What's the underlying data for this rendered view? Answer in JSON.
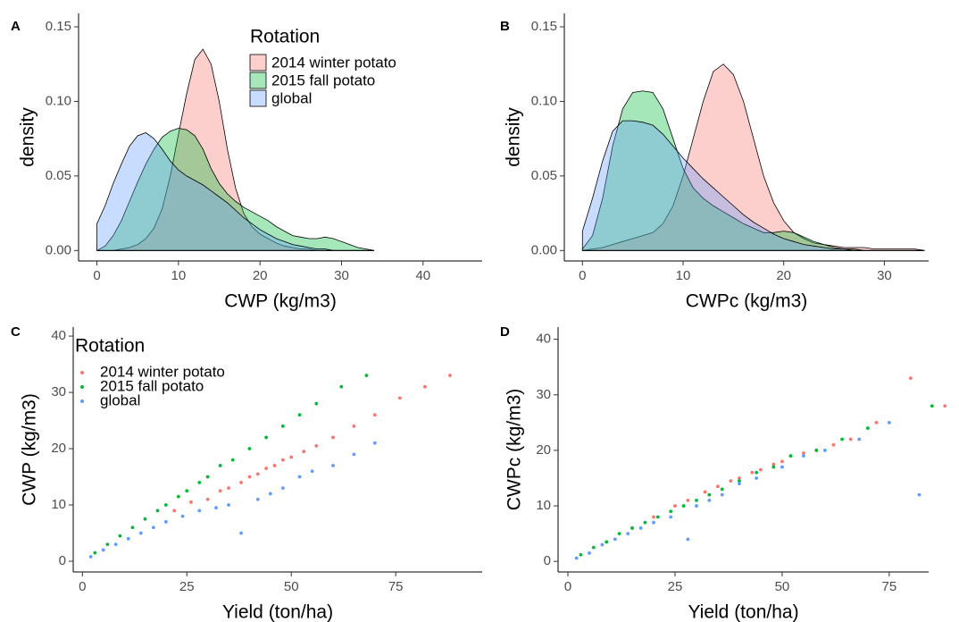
{
  "chart_data": [
    {
      "type": "area",
      "panel": "A",
      "xlabel": "CWP (kg/m3)",
      "ylabel": "density",
      "legend_title": "Rotation",
      "xlim": [
        -2.25,
        47.25
      ],
      "ylim": [
        -0.007,
        0.159
      ],
      "xticks": [
        0,
        10,
        20,
        30,
        40
      ],
      "yticks": [
        {
          "value": 0,
          "label": "0.00"
        },
        {
          "value": 0.05,
          "label": "0.05"
        },
        {
          "value": 0.1,
          "label": "0.10"
        },
        {
          "value": 0.15,
          "label": "0.15"
        }
      ],
      "x": [
        0,
        1,
        2,
        3,
        4,
        5,
        6,
        7,
        8,
        9,
        10,
        11,
        12,
        13,
        14,
        15,
        16,
        17,
        18,
        19,
        20,
        21,
        22,
        23,
        24,
        25,
        26,
        27,
        28,
        29,
        30,
        31,
        32,
        33,
        34
      ],
      "series": [
        {
          "name": "2014 winter potato",
          "color": "#F8766D",
          "values": [
            0,
            0,
            0,
            0.001,
            0.002,
            0.004,
            0.008,
            0.015,
            0.028,
            0.05,
            0.078,
            0.105,
            0.128,
            0.135,
            0.125,
            0.1,
            0.068,
            0.042,
            0.025,
            0.016,
            0.011,
            0.008,
            0.005,
            0.003,
            0.002,
            0.001,
            0.001,
            0,
            0,
            0,
            0,
            0,
            0,
            0,
            0
          ]
        },
        {
          "name": "2015 fall potato",
          "color": "#00BA38",
          "values": [
            0,
            0.003,
            0.01,
            0.02,
            0.033,
            0.046,
            0.058,
            0.068,
            0.076,
            0.08,
            0.082,
            0.081,
            0.077,
            0.068,
            0.055,
            0.045,
            0.038,
            0.033,
            0.029,
            0.026,
            0.023,
            0.02,
            0.016,
            0.013,
            0.01,
            0.009,
            0.008,
            0.008,
            0.009,
            0.008,
            0.006,
            0.004,
            0.002,
            0.001,
            0
          ]
        },
        {
          "name": "global",
          "color": "#619CFF",
          "values": [
            0.018,
            0.03,
            0.045,
            0.058,
            0.07,
            0.077,
            0.079,
            0.075,
            0.068,
            0.06,
            0.054,
            0.05,
            0.047,
            0.044,
            0.04,
            0.036,
            0.032,
            0.027,
            0.022,
            0.018,
            0.014,
            0.011,
            0.008,
            0.006,
            0.004,
            0.003,
            0.002,
            0.001,
            0.001,
            0,
            0,
            0,
            0,
            0,
            0
          ]
        }
      ]
    },
    {
      "type": "area",
      "panel": "B",
      "xlabel": "CWPc (kg/m3)",
      "ylabel": "density",
      "xlim": [
        -1.8,
        34.4
      ],
      "ylim": [
        -0.007,
        0.159
      ],
      "xticks": [
        0,
        10,
        20,
        30
      ],
      "yticks": [
        {
          "value": 0,
          "label": "0.00"
        },
        {
          "value": 0.05,
          "label": "0.05"
        },
        {
          "value": 0.1,
          "label": "0.10"
        },
        {
          "value": 0.15,
          "label": "0.15"
        }
      ],
      "x": [
        0,
        1,
        2,
        3,
        4,
        5,
        6,
        7,
        8,
        9,
        10,
        11,
        12,
        13,
        14,
        15,
        16,
        17,
        18,
        19,
        20,
        21,
        22,
        23,
        24,
        25,
        26,
        27,
        28,
        29,
        30,
        31,
        32,
        33,
        34
      ],
      "series": [
        {
          "color": "#F8766D",
          "values": [
            0,
            0.001,
            0.002,
            0.004,
            0.006,
            0.008,
            0.01,
            0.012,
            0.018,
            0.03,
            0.05,
            0.075,
            0.1,
            0.12,
            0.125,
            0.118,
            0.1,
            0.075,
            0.05,
            0.032,
            0.02,
            0.012,
            0.008,
            0.005,
            0.004,
            0.003,
            0.002,
            0.002,
            0.002,
            0.001,
            0.001,
            0.001,
            0.001,
            0.001,
            0
          ]
        },
        {
          "color": "#00BA38",
          "values": [
            0.001,
            0.01,
            0.035,
            0.07,
            0.095,
            0.106,
            0.107,
            0.106,
            0.095,
            0.075,
            0.055,
            0.042,
            0.035,
            0.03,
            0.026,
            0.022,
            0.018,
            0.015,
            0.012,
            0.012,
            0.013,
            0.012,
            0.009,
            0.006,
            0.004,
            0.002,
            0.001,
            0.001,
            0,
            0,
            0,
            0,
            0,
            0,
            0
          ]
        },
        {
          "color": "#619CFF",
          "values": [
            0.013,
            0.035,
            0.06,
            0.08,
            0.087,
            0.087,
            0.086,
            0.084,
            0.078,
            0.07,
            0.062,
            0.055,
            0.048,
            0.042,
            0.036,
            0.03,
            0.024,
            0.019,
            0.015,
            0.011,
            0.008,
            0.006,
            0.004,
            0.003,
            0.002,
            0.001,
            0.001,
            0,
            0,
            0,
            0,
            0,
            0,
            0,
            0
          ]
        }
      ]
    },
    {
      "type": "scatter",
      "panel": "C",
      "xlabel": "Yield (ton/ha)",
      "ylabel": "CWP (kg/m3)",
      "legend_title": "Rotation",
      "xlim": [
        -2.2,
        95.7
      ],
      "ylim": [
        -1.9,
        41.6
      ],
      "xticks": [
        0,
        25,
        50,
        75
      ],
      "yticks": [
        0,
        10,
        20,
        30,
        40
      ],
      "series": [
        {
          "name": "2014 winter potato",
          "color": "#F8766D",
          "x": [
            22,
            26,
            30,
            33,
            35,
            38,
            40,
            42,
            44,
            46,
            48,
            50,
            53,
            56,
            60,
            65,
            70,
            76,
            82,
            88
          ],
          "values": [
            9,
            10.5,
            11,
            12.5,
            13,
            14,
            15,
            15.5,
            16.5,
            17,
            18,
            18.5,
            19.5,
            20.5,
            22,
            24,
            26,
            29,
            31,
            33
          ]
        },
        {
          "name": "2015 fall potato",
          "color": "#00BA38",
          "x": [
            3,
            6,
            9,
            12,
            15,
            18,
            20,
            23,
            25,
            28,
            30,
            33,
            36,
            40,
            44,
            48,
            52,
            56,
            62,
            68
          ],
          "values": [
            1.5,
            3,
            4.5,
            6,
            7.5,
            9,
            10,
            11.5,
            12.5,
            14,
            15,
            17,
            18,
            20,
            22,
            24,
            26,
            28,
            31,
            33
          ]
        },
        {
          "name": "global",
          "color": "#619CFF",
          "x": [
            2,
            5,
            8,
            11,
            14,
            17,
            20,
            24,
            28,
            32,
            35,
            38,
            42,
            45,
            48,
            52,
            55,
            60,
            65,
            70
          ],
          "values": [
            0.8,
            2,
            3,
            4,
            5,
            6,
            7,
            8,
            9,
            9.5,
            10,
            5,
            11,
            12,
            13,
            15,
            16,
            17,
            19,
            21
          ]
        }
      ]
    },
    {
      "type": "scatter",
      "panel": "D",
      "xlabel": "Yield (ton/ha)",
      "ylabel": "CWPc (kg/m3)",
      "xlim": [
        -2.3,
        84.2
      ],
      "ylim": [
        -1.9,
        42.2
      ],
      "xticks": [
        0,
        25,
        50,
        75
      ],
      "yticks": [
        0,
        10,
        20,
        30,
        40
      ],
      "series": [
        {
          "color": "#F8766D",
          "x": [
            15,
            20,
            25,
            28,
            32,
            35,
            38,
            40,
            43,
            45,
            48,
            50,
            52,
            55,
            58,
            62,
            66,
            72,
            80,
            88
          ],
          "values": [
            6,
            8,
            10,
            11,
            12.5,
            13.5,
            14.5,
            15,
            16,
            16.5,
            17.5,
            18,
            19,
            19.5,
            20,
            21,
            22,
            25,
            33,
            28
          ]
        },
        {
          "color": "#00BA38",
          "x": [
            3,
            6,
            9,
            12,
            15,
            18,
            21,
            24,
            27,
            30,
            33,
            36,
            40,
            44,
            48,
            52,
            58,
            64,
            70,
            85
          ],
          "values": [
            1.2,
            2.5,
            3.5,
            5,
            6,
            7,
            8,
            9,
            10,
            11,
            12,
            13,
            14.5,
            16,
            17,
            19,
            20,
            22,
            24,
            28
          ]
        },
        {
          "color": "#619CFF",
          "x": [
            2,
            5,
            8,
            11,
            14,
            17,
            20,
            24,
            28,
            30,
            33,
            36,
            40,
            44,
            50,
            55,
            60,
            68,
            75,
            82
          ],
          "values": [
            0.6,
            1.5,
            3,
            4,
            5,
            6,
            7,
            8,
            4,
            10,
            11,
            12,
            14,
            15,
            17,
            19,
            20,
            22,
            25,
            12
          ]
        }
      ]
    }
  ]
}
